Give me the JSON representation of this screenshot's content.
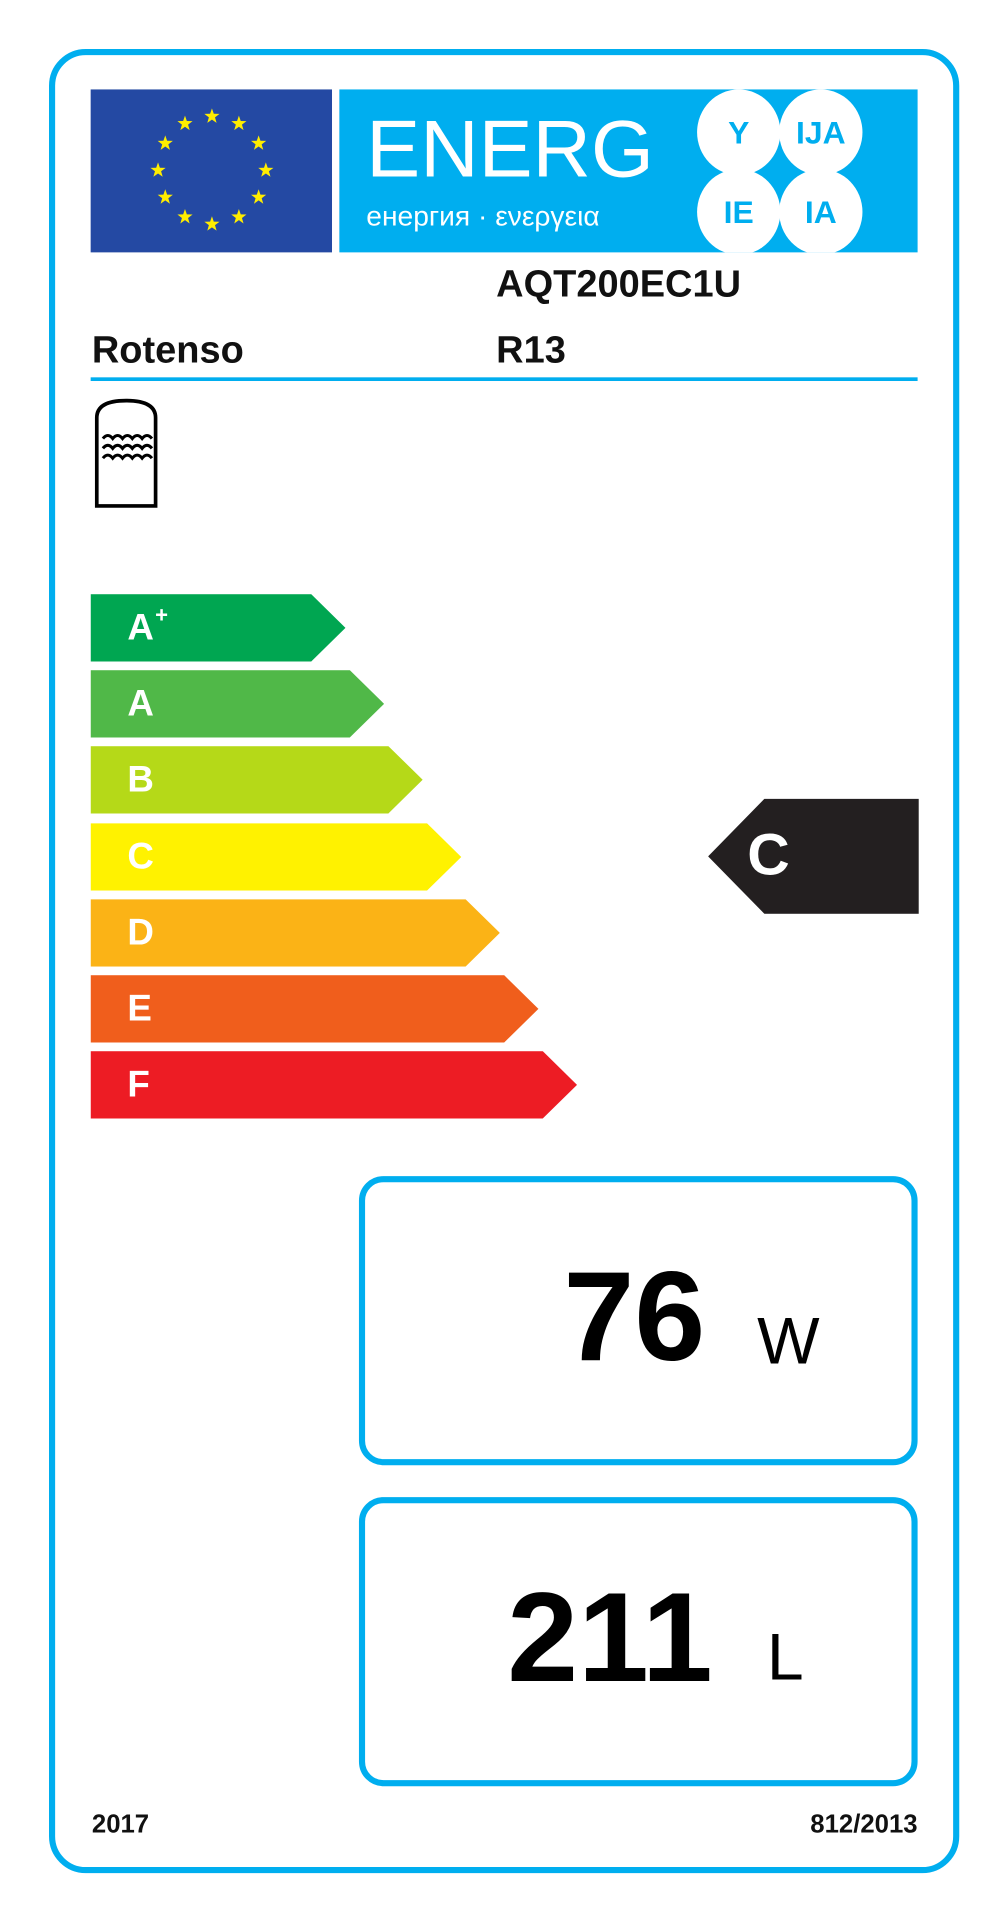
{
  "header": {
    "energy_word": "ENERG",
    "energy_subtitle": "енергия · ενεργεια",
    "language_suffixes": [
      "Y",
      "IJA",
      "IE",
      "IA"
    ]
  },
  "supplier": "Rotenso",
  "model": "AQT200EC1U",
  "model_variant": "R13",
  "product_icon": "water-tank-icon",
  "scale": [
    {
      "label": "A",
      "sup": "+",
      "color": "#00a651"
    },
    {
      "label": "A",
      "sup": "",
      "color": "#50b848"
    },
    {
      "label": "B",
      "sup": "",
      "color": "#b5d918"
    },
    {
      "label": "C",
      "sup": "",
      "color": "#fff200"
    },
    {
      "label": "D",
      "sup": "",
      "color": "#fbb316"
    },
    {
      "label": "E",
      "sup": "",
      "color": "#f05e1c"
    },
    {
      "label": "F",
      "sup": "",
      "color": "#ed1c24"
    }
  ],
  "rating": {
    "label": "C",
    "color": "#231f20"
  },
  "standing_loss": {
    "value": "76",
    "unit": "W"
  },
  "volume": {
    "value": "211",
    "unit": "L"
  },
  "footer": {
    "year": "2017",
    "regulation": "812/2013"
  },
  "colors": {
    "accent": "#00aeef",
    "eu_blue": "#2449a3",
    "eu_star": "#ffed00"
  }
}
